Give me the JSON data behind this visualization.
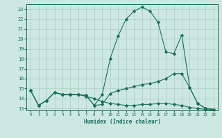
{
  "xlabel": "Humidex (Indice chaleur)",
  "bg_color": "#cce8e0",
  "grid_color": "#aaccC4",
  "line_color": "#1a6e60",
  "xlim": [
    -0.5,
    23.5
  ],
  "ylim": [
    12.8,
    23.5
  ],
  "yticks": [
    13,
    14,
    15,
    16,
    17,
    18,
    19,
    20,
    21,
    22,
    23
  ],
  "xticks": [
    0,
    1,
    2,
    3,
    4,
    5,
    6,
    7,
    8,
    9,
    10,
    11,
    12,
    13,
    14,
    15,
    16,
    17,
    18,
    19,
    20,
    21,
    22,
    23
  ],
  "lines": [
    {
      "x": [
        0,
        1,
        2,
        3,
        4,
        5,
        6,
        7,
        8,
        9,
        10,
        11,
        12,
        13,
        14,
        15,
        16,
        17,
        18,
        19,
        20,
        21,
        22,
        23
      ],
      "y": [
        14.8,
        13.3,
        13.8,
        14.6,
        14.4,
        14.4,
        14.4,
        14.3,
        13.3,
        14.4,
        18.0,
        20.3,
        22.0,
        22.8,
        23.2,
        22.8,
        21.7,
        18.7,
        18.5,
        20.4,
        15.1,
        13.5,
        13.0,
        12.9
      ]
    },
    {
      "x": [
        0,
        1,
        2,
        3,
        4,
        5,
        6,
        7,
        8,
        9,
        10,
        11,
        12,
        13,
        14,
        15,
        16,
        17,
        18,
        19,
        20,
        21,
        22,
        23
      ],
      "y": [
        14.8,
        13.3,
        13.8,
        14.6,
        14.4,
        14.4,
        14.4,
        14.3,
        13.3,
        13.4,
        14.5,
        14.8,
        15.0,
        15.2,
        15.4,
        15.5,
        15.7,
        16.0,
        16.5,
        16.5,
        15.1,
        13.5,
        13.0,
        12.9
      ]
    },
    {
      "x": [
        0,
        1,
        2,
        3,
        4,
        5,
        6,
        7,
        8,
        9,
        10,
        11,
        12,
        13,
        14,
        15,
        16,
        17,
        18,
        19,
        20,
        21,
        22,
        23
      ],
      "y": [
        14.8,
        13.3,
        13.8,
        14.6,
        14.4,
        14.4,
        14.4,
        14.2,
        14.0,
        13.7,
        13.5,
        13.4,
        13.3,
        13.3,
        13.4,
        13.4,
        13.5,
        13.5,
        13.4,
        13.3,
        13.1,
        13.0,
        12.9,
        12.8
      ]
    }
  ]
}
